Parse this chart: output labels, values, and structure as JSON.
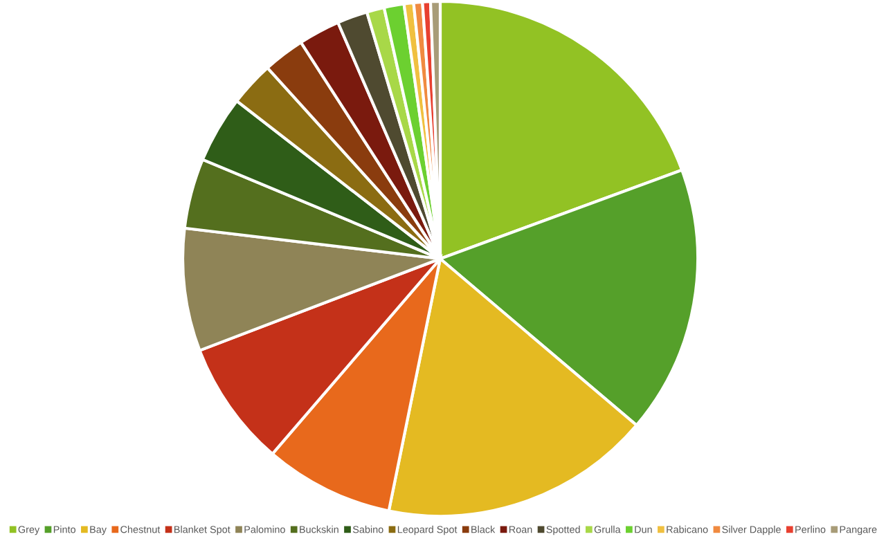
{
  "chart_data": {
    "type": "pie",
    "legend": "bottom",
    "categories": [
      "Grey",
      "Pinto",
      "Bay",
      "Chestnut",
      "Blanket Spot",
      "Palomino",
      "Buckskin",
      "Sabino",
      "Leopard Spot",
      "Black",
      "Roan",
      "Spotted",
      "Grulla",
      "Dun",
      "Rabicano",
      "Silver Dapple",
      "Perlino",
      "Pangare"
    ],
    "values": [
      19.4,
      16.8,
      17,
      8.1,
      7.9,
      7.7,
      4.4,
      4.2,
      2.8,
      2.6,
      2.6,
      1.9,
      1.1,
      1.25,
      0.6,
      0.55,
      0.5,
      0.6
    ],
    "colors": [
      "#92c224",
      "#55a02a",
      "#e4ba22",
      "#e8691c",
      "#c43119",
      "#8f8457",
      "#546f1e",
      "#2f5d18",
      "#8b6c12",
      "#8a3c0e",
      "#7a1a0e",
      "#4f4a30",
      "#a8d848",
      "#6cd030",
      "#f0c040",
      "#f08a40",
      "#e84030",
      "#a89c78"
    ]
  }
}
